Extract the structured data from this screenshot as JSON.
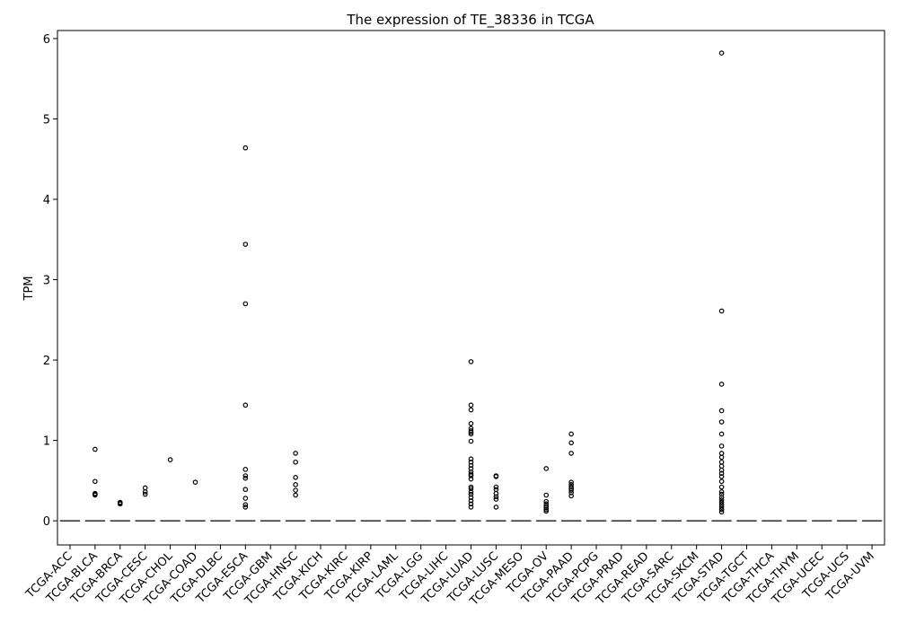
{
  "chart_data": {
    "type": "box",
    "title": "The expression of TE_38336 in TCGA",
    "xlabel": "",
    "ylabel": "TPM",
    "ylim": [
      -0.3,
      6.1
    ],
    "yticks": [
      0,
      1,
      2,
      3,
      4,
      5,
      6
    ],
    "grid": false,
    "legend": "none",
    "categories": [
      "TCGA-ACC",
      "TCGA-BLCA",
      "TCGA-BRCA",
      "TCGA-CESC",
      "TCGA-CHOL",
      "TCGA-COAD",
      "TCGA-DLBC",
      "TCGA-ESCA",
      "TCGA-GBM",
      "TCGA-HNSC",
      "TCGA-KICH",
      "TCGA-KIRC",
      "TCGA-KIRP",
      "TCGA-LAML",
      "TCGA-LGG",
      "TCGA-LIHC",
      "TCGA-LUAD",
      "TCGA-LUSC",
      "TCGA-MESO",
      "TCGA-OV",
      "TCGA-PAAD",
      "TCGA-PCPG",
      "TCGA-PRAD",
      "TCGA-READ",
      "TCGA-SARC",
      "TCGA-SKCM",
      "TCGA-STAD",
      "TCGA-TGCT",
      "TCGA-THCA",
      "TCGA-THYM",
      "TCGA-UCEC",
      "TCGA-UCS",
      "TCGA-UVM"
    ],
    "medians": [
      0,
      0,
      0,
      0,
      0,
      0,
      0,
      0,
      0,
      0,
      0,
      0,
      0,
      0,
      0,
      0,
      0,
      0,
      0,
      0,
      0,
      0,
      0,
      0,
      0,
      0,
      0,
      0,
      0,
      0,
      0,
      0,
      0
    ],
    "outliers": [
      [],
      [
        0.89,
        0.49,
        0.34,
        0.33,
        0.32
      ],
      [
        0.23,
        0.22,
        0.21
      ],
      [
        0.41,
        0.36,
        0.33
      ],
      [
        0.76
      ],
      [
        0.48
      ],
      [],
      [
        4.64,
        3.44,
        2.7,
        1.44,
        0.64,
        0.56,
        0.53,
        0.39,
        0.28,
        0.2,
        0.17
      ],
      [],
      [
        0.84,
        0.73,
        0.54,
        0.45,
        0.38,
        0.32
      ],
      [],
      [],
      [],
      [],
      [],
      [],
      [
        1.98,
        1.44,
        1.38,
        1.21,
        1.15,
        1.12,
        1.1,
        1.08,
        0.99,
        0.77,
        0.73,
        0.69,
        0.65,
        0.61,
        0.58,
        0.56,
        0.52,
        0.42,
        0.4,
        0.36,
        0.33,
        0.29,
        0.25,
        0.21,
        0.17
      ],
      [
        0.56,
        0.55,
        0.42,
        0.39,
        0.34,
        0.3,
        0.27,
        0.17
      ],
      [],
      [
        0.65,
        0.32,
        0.24,
        0.21,
        0.18,
        0.16,
        0.14,
        0.12
      ],
      [
        1.08,
        0.97,
        0.84,
        0.48,
        0.45,
        0.42,
        0.4,
        0.38,
        0.35,
        0.31
      ],
      [],
      [],
      [],
      [],
      [],
      [
        5.82,
        2.61,
        1.7,
        1.37,
        1.23,
        1.08,
        0.93,
        0.84,
        0.79,
        0.73,
        0.68,
        0.63,
        0.59,
        0.55,
        0.49,
        0.42,
        0.36,
        0.33,
        0.29,
        0.26,
        0.23,
        0.2,
        0.17,
        0.14,
        0.11
      ],
      [],
      [],
      [],
      [],
      [],
      []
    ]
  }
}
